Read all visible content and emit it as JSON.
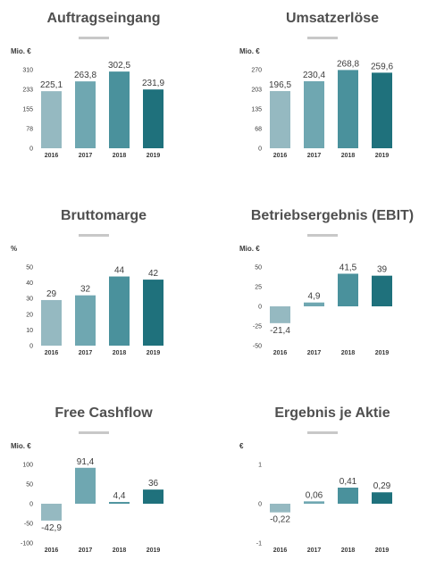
{
  "colors": [
    "#95b9c1",
    "#6fa7b1",
    "#4a919c",
    "#1f717c"
  ],
  "chart_data": [
    {
      "type": "bar",
      "title": "Auftragseingang",
      "ylabel": "Mio. €",
      "categories": [
        "2016",
        "2017",
        "2018",
        "2019"
      ],
      "values": [
        225.1,
        263.8,
        302.5,
        231.9
      ],
      "value_labels": [
        "225,1",
        "263,8",
        "302,5",
        "231,9"
      ],
      "yticks": [
        0,
        78,
        155,
        233,
        310
      ],
      "ylim": [
        0,
        310
      ],
      "grid": false
    },
    {
      "type": "bar",
      "title": "Umsatzerlöse",
      "ylabel": "Mio. €",
      "categories": [
        "2016",
        "2017",
        "2018",
        "2019"
      ],
      "values": [
        196.5,
        230.4,
        268.8,
        259.6
      ],
      "value_labels": [
        "196,5",
        "230,4",
        "268,8",
        "259,6"
      ],
      "yticks": [
        0,
        68,
        135,
        203,
        270
      ],
      "ylim": [
        0,
        270
      ],
      "grid": false
    },
    {
      "type": "bar",
      "title": "Bruttomarge",
      "ylabel": "%",
      "categories": [
        "2016",
        "2017",
        "2018",
        "2019"
      ],
      "values": [
        29,
        32,
        44,
        42
      ],
      "value_labels": [
        "29",
        "32",
        "44",
        "42"
      ],
      "yticks": [
        0,
        10,
        20,
        30,
        40,
        50
      ],
      "ylim": [
        0,
        50
      ],
      "grid": false
    },
    {
      "type": "bar",
      "title": "Betriebsergebnis (EBIT)",
      "ylabel": "Mio. €",
      "categories": [
        "2016",
        "2017",
        "2018",
        "2019"
      ],
      "values": [
        -21.4,
        4.9,
        41.5,
        39
      ],
      "value_labels": [
        "-21,4",
        "4,9",
        "41,5",
        "39"
      ],
      "yticks": [
        -50,
        -25,
        0,
        25,
        50
      ],
      "ylim": [
        -50,
        50
      ],
      "grid": false
    },
    {
      "type": "bar",
      "title": "Free Cashflow",
      "ylabel": "Mio. €",
      "categories": [
        "2016",
        "2017",
        "2018",
        "2019"
      ],
      "values": [
        -42.9,
        91.4,
        4.4,
        36
      ],
      "value_labels": [
        "-42,9",
        "91,4",
        "4,4",
        "36"
      ],
      "yticks": [
        -100,
        -50,
        0,
        50,
        100
      ],
      "ylim": [
        -100,
        100
      ],
      "grid": false
    },
    {
      "type": "bar",
      "title": "Ergebnis je Aktie",
      "ylabel": "€",
      "categories": [
        "2016",
        "2017",
        "2018",
        "2019"
      ],
      "values": [
        -0.22,
        0.06,
        0.41,
        0.29
      ],
      "value_labels": [
        "-0,22",
        "0,06",
        "0,41",
        "0,29"
      ],
      "yticks": [
        -1,
        0,
        1
      ],
      "ylim": [
        -1,
        1
      ],
      "grid": false
    }
  ]
}
